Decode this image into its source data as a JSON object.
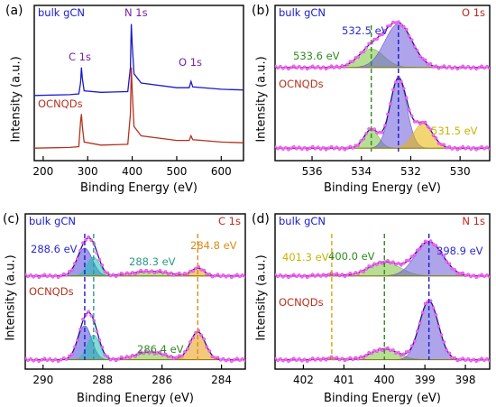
{
  "figure": {
    "colors": {
      "bulk": "#1a1acc",
      "ocn": "#b4321e",
      "green": "#2e8b1e",
      "blue_label": "#2a2ad0",
      "teal": "#2a9a8a",
      "orange": "#d98c1a",
      "yellow": "#c9b400",
      "magenta": "#ff55ff",
      "purple": "#7a1fa8",
      "red_label": "#c0281e"
    }
  },
  "chart_data": [
    {
      "id": "a",
      "type": "line",
      "panel_label": "(a)",
      "xlabel": "Binding Energy (eV)",
      "ylabel": "Intensity (a.u.)",
      "xlim": [
        180,
        650
      ],
      "x_ticks": [
        200,
        300,
        400,
        500,
        600
      ],
      "x_tick_labels": [
        "200",
        "300",
        "400",
        "500",
        "600"
      ],
      "series": [
        {
          "name": "bulk gCN",
          "color": "#1a1acc",
          "baseline": 0.42,
          "points": [
            [
              180,
              0.42
            ],
            [
              260,
              0.425
            ],
            [
              280,
              0.43
            ],
            [
              284,
              0.5
            ],
            [
              286,
              0.6
            ],
            [
              288,
              0.53
            ],
            [
              292,
              0.45
            ],
            [
              330,
              0.44
            ],
            [
              390,
              0.445
            ],
            [
              396,
              0.6
            ],
            [
              398,
              0.88
            ],
            [
              400,
              0.75
            ],
            [
              404,
              0.56
            ],
            [
              420,
              0.5
            ],
            [
              500,
              0.47
            ],
            [
              528,
              0.47
            ],
            [
              532,
              0.51
            ],
            [
              536,
              0.475
            ],
            [
              600,
              0.46
            ],
            [
              650,
              0.455
            ]
          ]
        },
        {
          "name": "OCNQDs",
          "color": "#b4321e",
          "baseline": 0.08,
          "points": [
            [
              180,
              0.08
            ],
            [
              260,
              0.085
            ],
            [
              280,
              0.09
            ],
            [
              284,
              0.25
            ],
            [
              286,
              0.3
            ],
            [
              288,
              0.22
            ],
            [
              292,
              0.12
            ],
            [
              330,
              0.1
            ],
            [
              390,
              0.105
            ],
            [
              396,
              0.3
            ],
            [
              398,
              0.6
            ],
            [
              400,
              0.45
            ],
            [
              404,
              0.22
            ],
            [
              420,
              0.16
            ],
            [
              500,
              0.13
            ],
            [
              528,
              0.13
            ],
            [
              532,
              0.16
            ],
            [
              536,
              0.135
            ],
            [
              600,
              0.12
            ],
            [
              650,
              0.115
            ]
          ]
        }
      ],
      "annotations": [
        {
          "text": "bulk gCN",
          "color": "#1a1acc"
        },
        {
          "text": "C 1s",
          "color": "#7a1fa8"
        },
        {
          "text": "N 1s",
          "color": "#7a1fa8"
        },
        {
          "text": "O 1s",
          "color": "#7a1fa8"
        },
        {
          "text": "OCNQDs",
          "color": "#b4321e"
        }
      ]
    },
    {
      "id": "b",
      "type": "line",
      "panel_label": "(b)",
      "title": "O 1s",
      "xlabel": "Binding Energy (eV)",
      "ylabel": "Intensity (a.u.)",
      "xlim": [
        537.5,
        528.8
      ],
      "x_ticks": [
        536,
        534,
        532,
        530
      ],
      "x_tick_labels": [
        "536",
        "534",
        "532",
        "530"
      ],
      "groups": [
        {
          "name": "bulk gCN",
          "baseline": 0.6,
          "peaks": [
            {
              "center": 533.6,
              "amp": 0.12,
              "width": 1.2,
              "color": "#7ac23c"
            },
            {
              "center": 532.5,
              "amp": 0.28,
              "width": 1.3,
              "color": "#6a5ad8"
            }
          ]
        },
        {
          "name": "OCNQDs",
          "baseline": 0.08,
          "peaks": [
            {
              "center": 533.6,
              "amp": 0.12,
              "width": 0.7,
              "color": "#7ac23c"
            },
            {
              "center": 532.5,
              "amp": 0.45,
              "width": 0.8,
              "color": "#6a5ad8"
            },
            {
              "center": 531.5,
              "amp": 0.16,
              "width": 0.9,
              "color": "#e8b400"
            }
          ]
        }
      ],
      "guides": [
        {
          "x": 533.6,
          "color": "#2e8b1e"
        },
        {
          "x": 532.5,
          "color": "#1a1acc"
        }
      ],
      "annotations": [
        {
          "text": "bulk gCN",
          "color": "#1a1acc"
        },
        {
          "text": "O 1s",
          "color": "#c0281e"
        },
        {
          "text": "532.5 eV",
          "color": "#2a2ad0"
        },
        {
          "text": "533.6 eV",
          "color": "#2e8b1e"
        },
        {
          "text": "OCNQDs",
          "color": "#b4321e"
        },
        {
          "text": "531.5 eV",
          "color": "#c9b400"
        }
      ]
    },
    {
      "id": "c",
      "type": "line",
      "panel_label": "(c)",
      "title": "C 1s",
      "xlabel": "Binding Energy (eV)",
      "ylabel": "Intensity (a.u.)",
      "xlim": [
        290.6,
        283.2
      ],
      "x_ticks": [
        290,
        288,
        286,
        284
      ],
      "x_tick_labels": [
        "290",
        "288",
        "286",
        "284"
      ],
      "groups": [
        {
          "name": "bulk gCN",
          "baseline": 0.6,
          "peaks": [
            {
              "center": 288.6,
              "amp": 0.18,
              "width": 0.6,
              "color": "#4a4ad8"
            },
            {
              "center": 288.3,
              "amp": 0.12,
              "width": 0.5,
              "color": "#20c0b0"
            },
            {
              "center": 286.4,
              "amp": 0.03,
              "width": 1.5,
              "color": "#7ac23c"
            },
            {
              "center": 284.8,
              "amp": 0.05,
              "width": 0.5,
              "color": "#e89a10"
            }
          ]
        },
        {
          "name": "OCNQDs",
          "baseline": 0.06,
          "peaks": [
            {
              "center": 288.6,
              "amp": 0.22,
              "width": 0.55,
              "color": "#4a4ad8"
            },
            {
              "center": 288.3,
              "amp": 0.16,
              "width": 0.5,
              "color": "#20c0b0"
            },
            {
              "center": 286.4,
              "amp": 0.05,
              "width": 1.2,
              "color": "#7ac23c"
            },
            {
              "center": 284.8,
              "amp": 0.18,
              "width": 0.6,
              "color": "#e89a10"
            }
          ]
        }
      ],
      "guides": [
        {
          "x": 288.6,
          "color": "#1a1acc"
        },
        {
          "x": 288.3,
          "color": "#2a9a8a"
        },
        {
          "x": 284.8,
          "color": "#d98c1a"
        }
      ],
      "annotations": [
        {
          "text": "bulk gCN",
          "color": "#1a1acc"
        },
        {
          "text": "C 1s",
          "color": "#c0281e"
        },
        {
          "text": "288.6 eV",
          "color": "#2a2ad0"
        },
        {
          "text": "288.3 eV",
          "color": "#2a9a8a"
        },
        {
          "text": "284.8 eV",
          "color": "#d98c1a"
        },
        {
          "text": "OCNQDs",
          "color": "#b4321e"
        },
        {
          "text": "286.4 eV",
          "color": "#2e8b1e"
        }
      ]
    },
    {
      "id": "d",
      "type": "line",
      "panel_label": "(d)",
      "title": "N 1s",
      "xlabel": "Binding Energy (eV)",
      "ylabel": "Intensity (a.u.)",
      "xlim": [
        402.7,
        397.4
      ],
      "x_ticks": [
        402,
        401,
        400,
        399,
        398
      ],
      "x_tick_labels": [
        "402",
        "401",
        "400",
        "399",
        "398"
      ],
      "groups": [
        {
          "name": "bulk gCN",
          "baseline": 0.6,
          "peaks": [
            {
              "center": 401.3,
              "amp": 0.01,
              "width": 0.5,
              "color": "#e8c400"
            },
            {
              "center": 400.0,
              "amp": 0.09,
              "width": 0.9,
              "color": "#7ac23c"
            },
            {
              "center": 398.9,
              "amp": 0.22,
              "width": 0.8,
              "color": "#6a5ad8"
            }
          ]
        },
        {
          "name": "OCNQDs",
          "baseline": 0.06,
          "peaks": [
            {
              "center": 401.3,
              "amp": 0.01,
              "width": 0.5,
              "color": "#e8c400"
            },
            {
              "center": 400.0,
              "amp": 0.07,
              "width": 0.8,
              "color": "#7ac23c"
            },
            {
              "center": 398.9,
              "amp": 0.38,
              "width": 0.55,
              "color": "#6a5ad8"
            }
          ]
        }
      ],
      "guides": [
        {
          "x": 401.3,
          "color": "#d9a800"
        },
        {
          "x": 400.0,
          "color": "#2e8b1e"
        },
        {
          "x": 398.9,
          "color": "#1a1acc"
        }
      ],
      "annotations": [
        {
          "text": "bulk gCN",
          "color": "#1a1acc"
        },
        {
          "text": "N 1s",
          "color": "#c0281e"
        },
        {
          "text": "401.3 eV",
          "color": "#c9b400"
        },
        {
          "text": "400.0 eV",
          "color": "#2e8b1e"
        },
        {
          "text": "398.9 eV",
          "color": "#2a2ad0"
        },
        {
          "text": "OCNQDs",
          "color": "#b4321e"
        }
      ]
    }
  ]
}
